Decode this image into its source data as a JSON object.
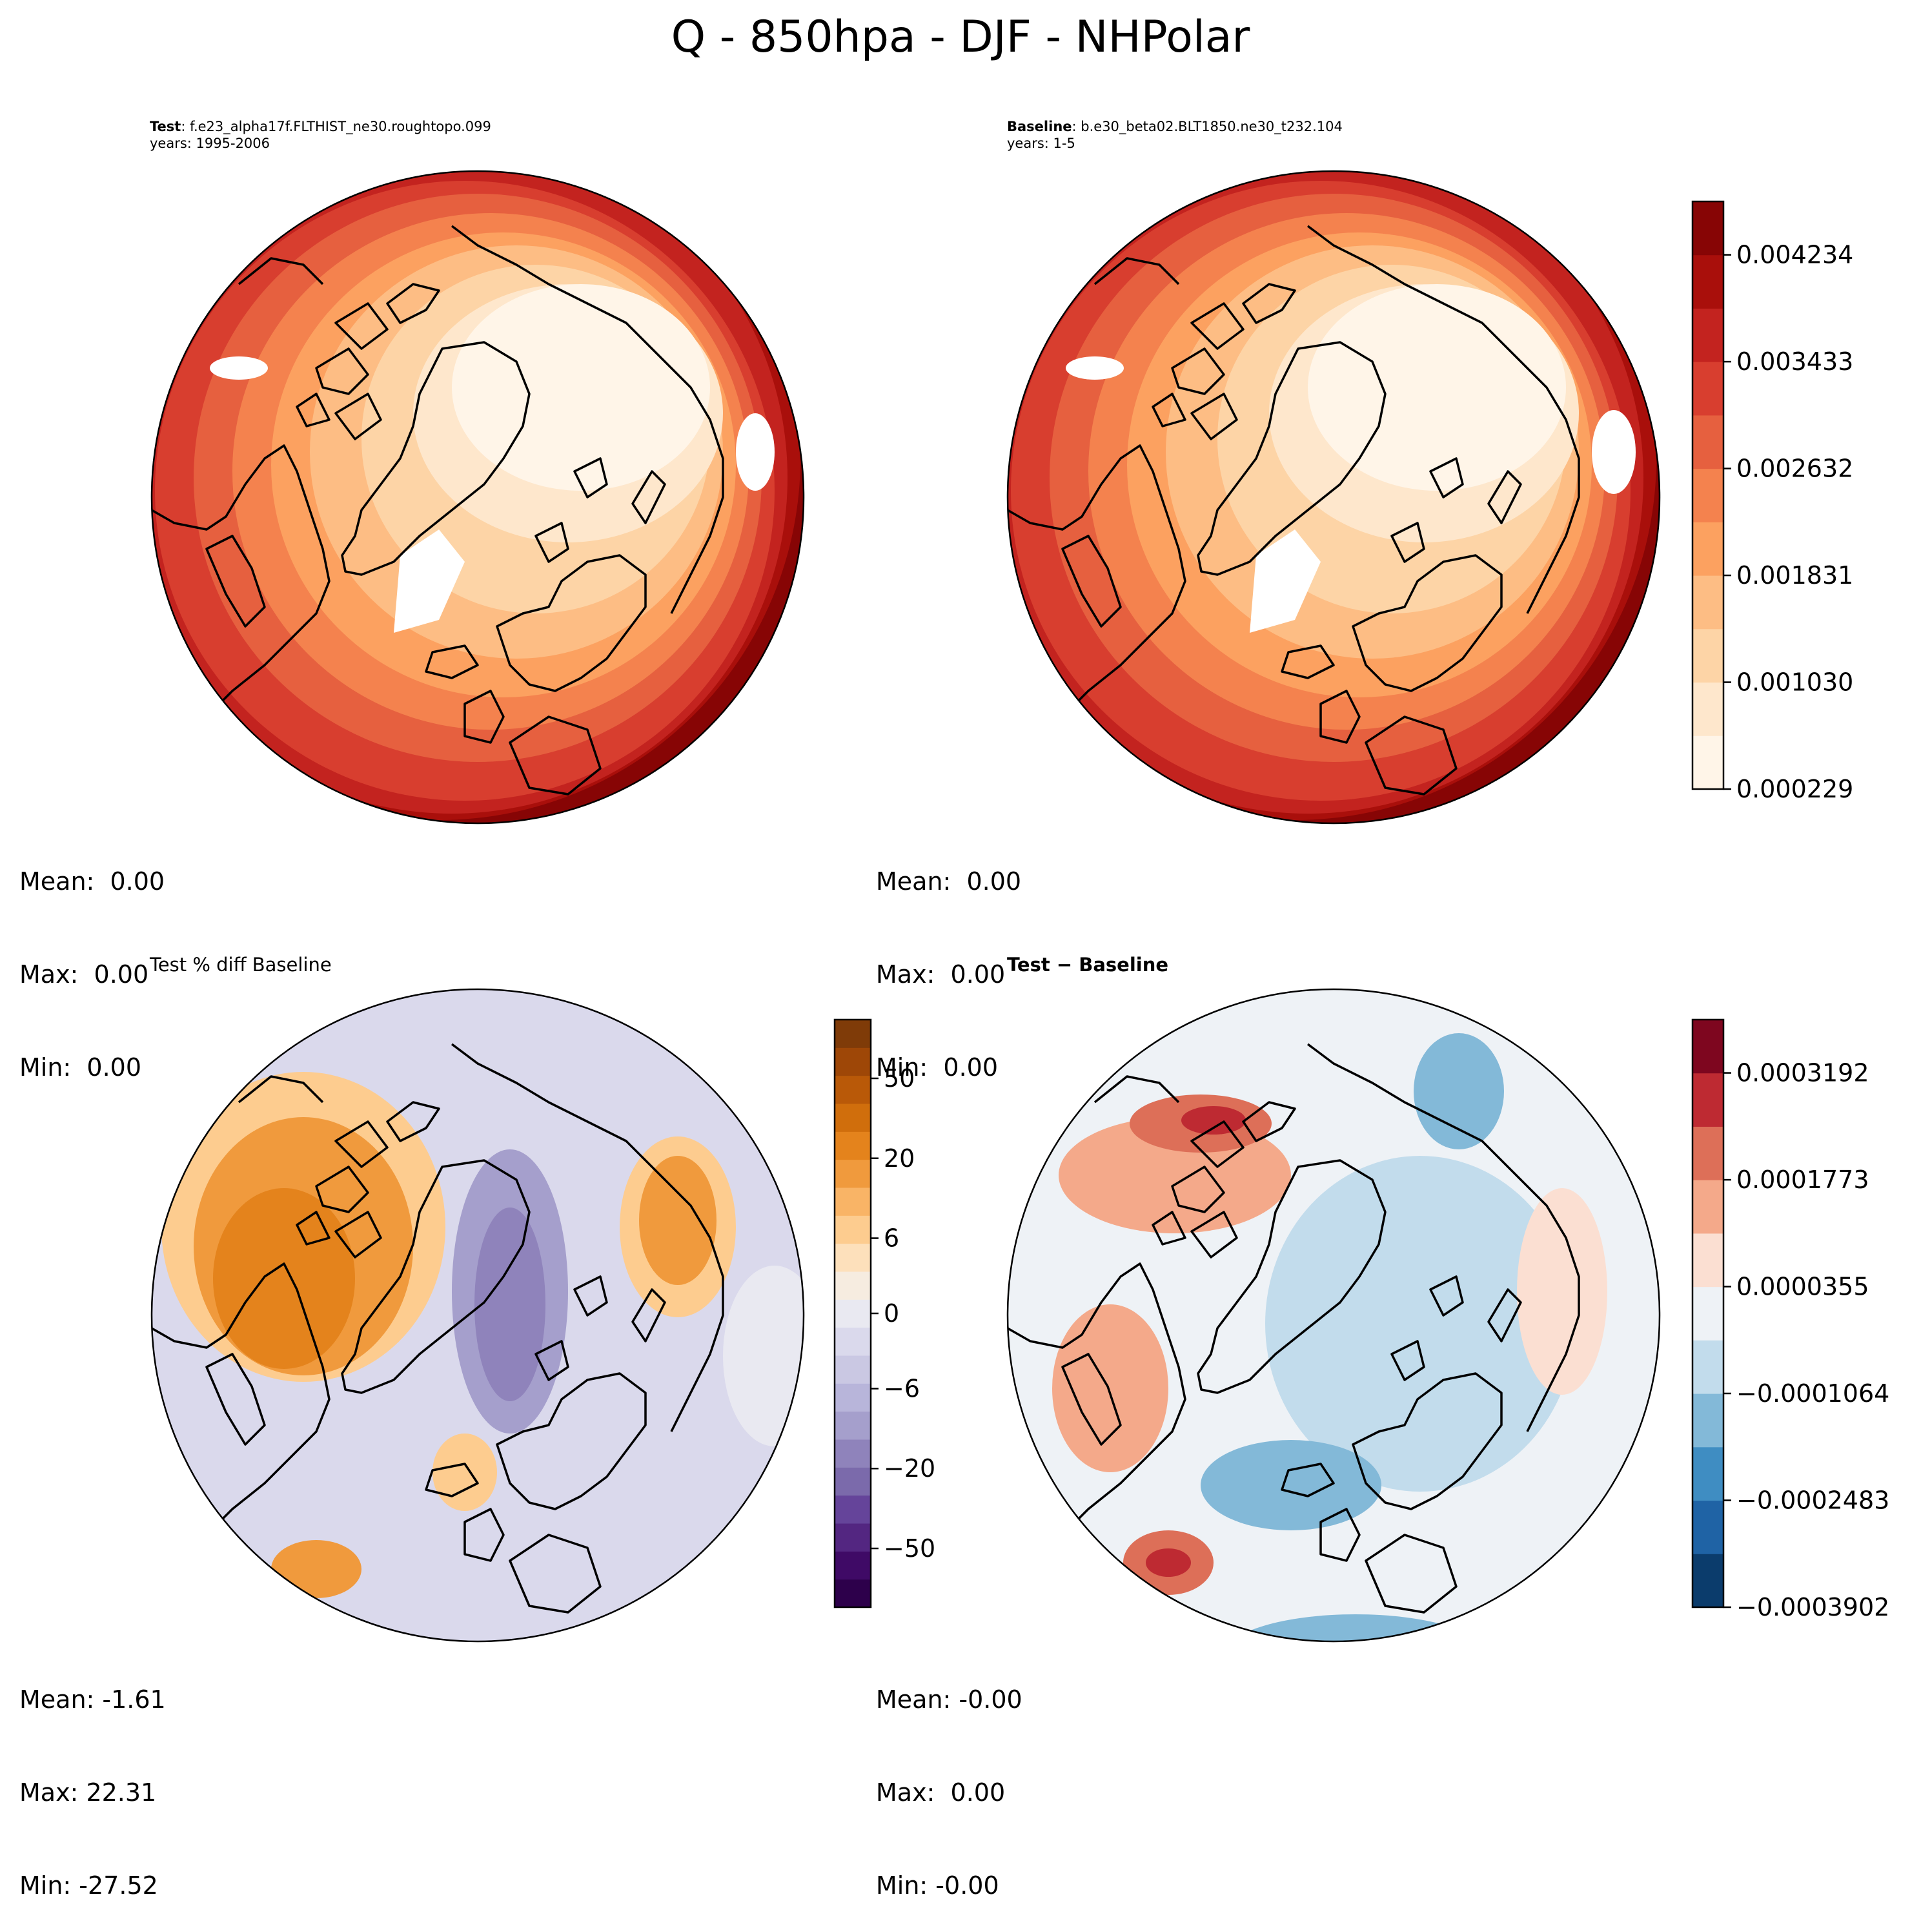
{
  "figure_title": "Q - 850hpa - DJF - NHPolar",
  "panels": {
    "test": {
      "label": "Test",
      "case": ": f.e23_alpha17f.FLTHIST_ne30.roughtopo.099",
      "years": "years: 1995-2006",
      "stats": {
        "mean": "Mean:  0.00",
        "max": "Max:  0.00",
        "min": "Min:  0.00"
      }
    },
    "baseline": {
      "label": "Baseline",
      "case": ": b.e30_beta02.BLT1850.ne30_t232.104",
      "years": "years: 1-5",
      "stats": {
        "mean": "Mean:  0.00",
        "max": "Max:  0.00",
        "min": "Min:  0.00"
      }
    },
    "pctdiff": {
      "title": "Test % diff Baseline",
      "stats": {
        "mean": "Mean: -1.61",
        "max": "Max: 22.31",
        "min": "Min: -27.52"
      }
    },
    "diff": {
      "title": "Test − Baseline",
      "stats": {
        "mean": "Mean: -0.00",
        "max": "Max:  0.00",
        "min": "Min: -0.00"
      }
    }
  },
  "chart_data": [
    {
      "type": "colorbar",
      "name": "main",
      "ticks": [
        "0.000229",
        "0.001030",
        "0.001831",
        "0.002632",
        "0.003433",
        "0.004234"
      ],
      "tick_values": [
        0.000229,
        0.00103,
        0.001831,
        0.002632,
        0.003433,
        0.004234
      ],
      "range": [
        0.000229,
        0.004634
      ],
      "levels": 11,
      "colors": [
        "#fff5e8",
        "#fee7cc",
        "#fdd4a6",
        "#fdbd84",
        "#fca160",
        "#f4824e",
        "#e6603f",
        "#d83e2f",
        "#c3231f",
        "#a90f0b",
        "#870505"
      ]
    },
    {
      "type": "colorbar",
      "name": "pctdiff",
      "ticks": [
        "50",
        "20",
        "6",
        "0",
        "−6",
        "−20",
        "−50"
      ],
      "tick_fractions": [
        0.9,
        0.764,
        0.628,
        0.5,
        0.372,
        0.236,
        0.1
      ],
      "levels": 21,
      "colors": [
        "#2d004b",
        "#3f0a66",
        "#532681",
        "#65449a",
        "#7b6aab",
        "#8f83bb",
        "#a59fcc",
        "#b8b5da",
        "#cac8e3",
        "#dad9ec",
        "#e9e9f1",
        "#f6ece0",
        "#fde0bb",
        "#fdcc8f",
        "#f9b466",
        "#f09a3d",
        "#e4831c",
        "#d06e0c",
        "#b95908",
        "#9e4707",
        "#7f3b08"
      ]
    },
    {
      "type": "colorbar",
      "name": "diff",
      "ticks": [
        "0.0003192",
        "0.0001773",
        "0.0000355",
        "−0.0001064",
        "−0.0002483",
        "−0.0003902"
      ],
      "tick_values": [
        0.0003192,
        0.0001773,
        3.55e-05,
        -0.0001064,
        -0.0002483,
        -0.0003902
      ],
      "range": [
        -0.0003902,
        0.00039
      ],
      "levels": 11,
      "colors": [
        "#0b3c6c",
        "#1f63a5",
        "#3f8dc2",
        "#83b9d8",
        "#c2dcec",
        "#eef2f6",
        "#fbdfd2",
        "#f4a98a",
        "#dd6f58",
        "#be2a32",
        "#7e061f"
      ]
    }
  ]
}
